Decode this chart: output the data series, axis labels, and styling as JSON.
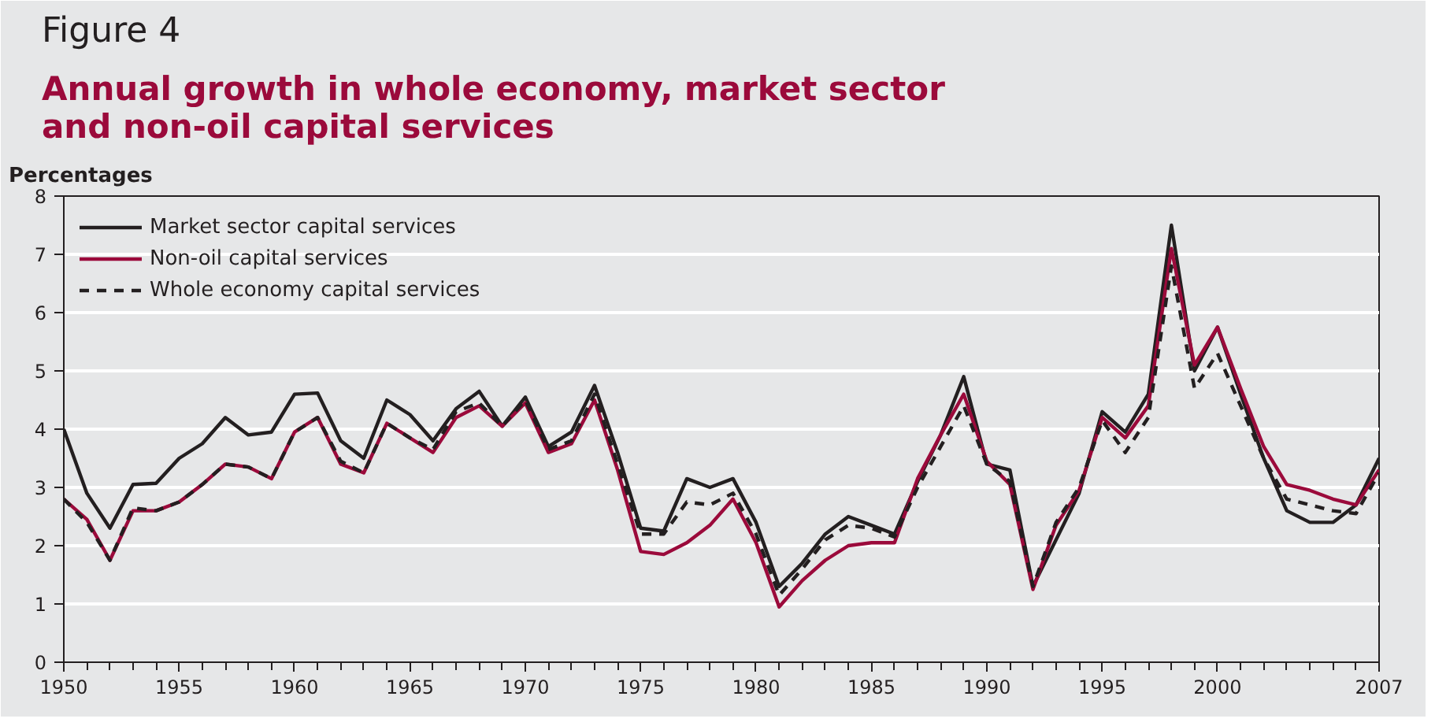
{
  "chart_data": {
    "type": "line",
    "title": "Figure 4",
    "subtitle": "Annual growth in whole economy, market sector\nand non-oil capital services",
    "ylabel": "Percentages",
    "x": [
      1950,
      1951,
      1952,
      1953,
      1954,
      1955,
      1956,
      1957,
      1958,
      1959,
      1960,
      1961,
      1962,
      1963,
      1964,
      1965,
      1966,
      1967,
      1968,
      1969,
      1970,
      1971,
      1972,
      1973,
      1974,
      1975,
      1976,
      1977,
      1978,
      1979,
      1980,
      1981,
      1982,
      1983,
      1984,
      1985,
      1986,
      1987,
      1988,
      1989,
      1990,
      1991,
      1992,
      1993,
      1994,
      1995,
      1996,
      1997,
      1998,
      1999,
      2000,
      2001,
      2002,
      2003,
      2004,
      2005,
      2006,
      2007
    ],
    "series": [
      {
        "name": "Market sector capital services",
        "color": "#231f20",
        "line_style": "solid",
        "values": [
          4.0,
          2.9,
          2.3,
          3.05,
          3.07,
          3.5,
          3.75,
          4.2,
          3.9,
          3.95,
          4.6,
          4.62,
          3.8,
          3.5,
          4.5,
          4.25,
          3.8,
          4.35,
          4.65,
          4.05,
          4.55,
          3.7,
          3.95,
          4.75,
          3.6,
          2.3,
          2.25,
          3.15,
          3.0,
          3.15,
          2.4,
          1.3,
          1.7,
          2.2,
          2.5,
          2.35,
          2.2,
          3.1,
          3.9,
          4.9,
          3.4,
          3.3,
          1.3,
          2.1,
          2.9,
          4.3,
          3.95,
          4.6,
          7.5,
          5.0,
          5.75,
          4.6,
          3.5,
          2.6,
          2.4,
          2.4,
          2.7,
          3.5
        ]
      },
      {
        "name": "Non-oil capital services",
        "color": "#9b0a3b",
        "line_style": "solid",
        "values": [
          2.8,
          2.45,
          1.75,
          2.6,
          2.6,
          2.75,
          3.05,
          3.4,
          3.35,
          3.15,
          3.95,
          4.2,
          3.4,
          3.25,
          4.1,
          3.85,
          3.6,
          4.2,
          4.4,
          4.05,
          4.45,
          3.6,
          3.75,
          4.5,
          3.3,
          1.9,
          1.85,
          2.05,
          2.35,
          2.8,
          2.05,
          0.95,
          1.4,
          1.75,
          2.0,
          2.05,
          2.05,
          3.15,
          3.9,
          4.6,
          3.45,
          3.05,
          1.25,
          2.35,
          2.95,
          4.2,
          3.85,
          4.4,
          7.1,
          5.1,
          5.75,
          4.7,
          3.7,
          3.05,
          2.95,
          2.8,
          2.7,
          3.3
        ]
      },
      {
        "name": "Whole economy capital services",
        "color": "#231f20",
        "line_style": "dashed",
        "values": [
          2.8,
          2.4,
          1.75,
          2.65,
          2.6,
          2.75,
          3.05,
          3.4,
          3.35,
          3.15,
          3.95,
          4.2,
          3.45,
          3.25,
          4.1,
          3.85,
          3.65,
          4.3,
          4.45,
          4.05,
          4.5,
          3.65,
          3.8,
          4.6,
          3.4,
          2.2,
          2.2,
          2.75,
          2.7,
          2.9,
          2.2,
          1.15,
          1.6,
          2.1,
          2.35,
          2.3,
          2.15,
          3.0,
          3.7,
          4.4,
          3.4,
          3.1,
          1.3,
          2.4,
          3.0,
          4.15,
          3.6,
          4.2,
          6.8,
          4.7,
          5.3,
          4.4,
          3.5,
          2.8,
          2.7,
          2.6,
          2.55,
          3.25
        ]
      }
    ],
    "xlim": [
      1950,
      2007
    ],
    "xticks": [
      1950,
      1955,
      1960,
      1965,
      1970,
      1975,
      1980,
      1985,
      1990,
      1995,
      2000,
      2007
    ],
    "ylim": [
      0,
      8
    ],
    "yticks": [
      0,
      1,
      2,
      3,
      4,
      5,
      6,
      7,
      8
    ],
    "grid": "y",
    "legend": "top left",
    "marker": "none"
  }
}
